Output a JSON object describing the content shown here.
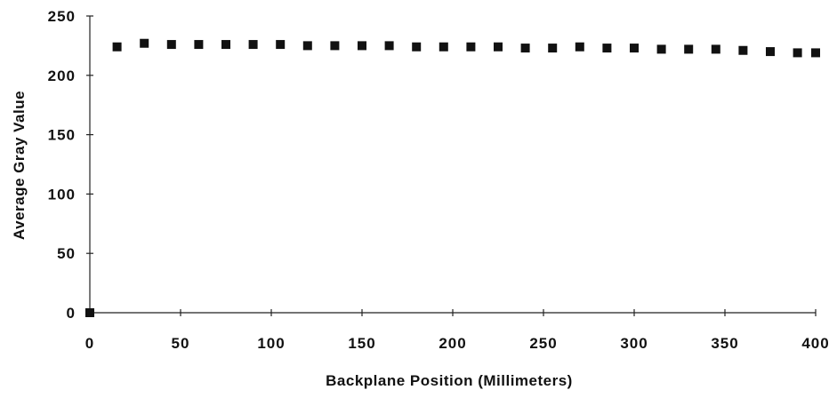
{
  "chart_data": {
    "type": "scatter",
    "title": "",
    "xlabel": "Backplane  Position  (Millimeters)",
    "ylabel": "Average  Gray  Value",
    "xlim": [
      0,
      400
    ],
    "ylim": [
      0,
      250
    ],
    "xticks": [
      "0",
      "50",
      "100",
      "150",
      "200",
      "250",
      "300",
      "350",
      "400"
    ],
    "yticks": [
      "0",
      "50",
      "100",
      "150",
      "200",
      "250"
    ],
    "grid": false,
    "marker": "square",
    "color": "#111111",
    "series": [
      {
        "x": [
          0,
          15,
          30,
          45,
          60,
          75,
          90,
          105,
          120,
          135,
          150,
          165,
          180,
          195,
          210,
          225,
          240,
          255,
          270,
          285,
          300,
          315,
          330,
          345,
          360,
          375,
          390,
          405
        ],
        "y": [
          0,
          224,
          227,
          226,
          226,
          226,
          226,
          226,
          225,
          225,
          225,
          225,
          224,
          224,
          224,
          224,
          223,
          223,
          224,
          223,
          223,
          222,
          222,
          222,
          221,
          220,
          219,
          219
        ]
      }
    ]
  }
}
